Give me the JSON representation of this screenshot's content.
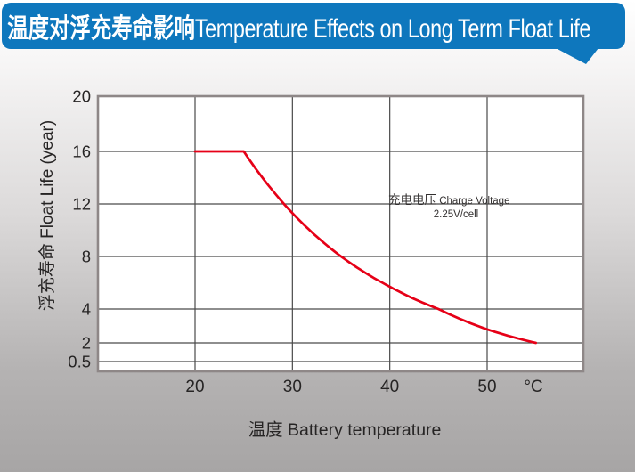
{
  "header": {
    "title_zh": "温度对浮充寿命影响",
    "title_en": "Temperature Effects on Long Term Float Life",
    "bg_color": "#0e77bd",
    "text_color": "#ffffff"
  },
  "chart_data": {
    "type": "line",
    "title": "Temperature Effects on Long Term Float Life",
    "xlabel": "温度 Battery temperature",
    "ylabel": "浮充寿命 Float Life (year)",
    "x_unit": "°C",
    "x_ticks": [
      20,
      30,
      40,
      50
    ],
    "y_ticks": [
      20,
      16,
      12,
      8,
      4,
      2,
      0.5
    ],
    "xlim": [
      10,
      60
    ],
    "ylim": [
      0.5,
      20
    ],
    "y_scale_note": "non-linear axis: steps 20-16-12-8-4 equal, 4-2 and 2-0.5 compressed",
    "grid": true,
    "legend": "none",
    "series": [
      {
        "name": "Float life at 2.25V/cell",
        "color": "#e60017",
        "points": [
          [
            20,
            16
          ],
          [
            25,
            16
          ],
          [
            30,
            11.3
          ],
          [
            35,
            8
          ],
          [
            40,
            5.7
          ],
          [
            45,
            4
          ],
          [
            50,
            2.8
          ],
          [
            55,
            2
          ]
        ]
      }
    ],
    "annotation": {
      "line1_zh": "充电电压",
      "line1_en": " Charge Voltage",
      "line2": "2.25V/cell"
    },
    "colors": {
      "curve": "#e60017",
      "grid_line": "#4a4a4a",
      "frame": "#8e8787",
      "text": "#262424",
      "plot_bg": "#ffffff"
    }
  }
}
